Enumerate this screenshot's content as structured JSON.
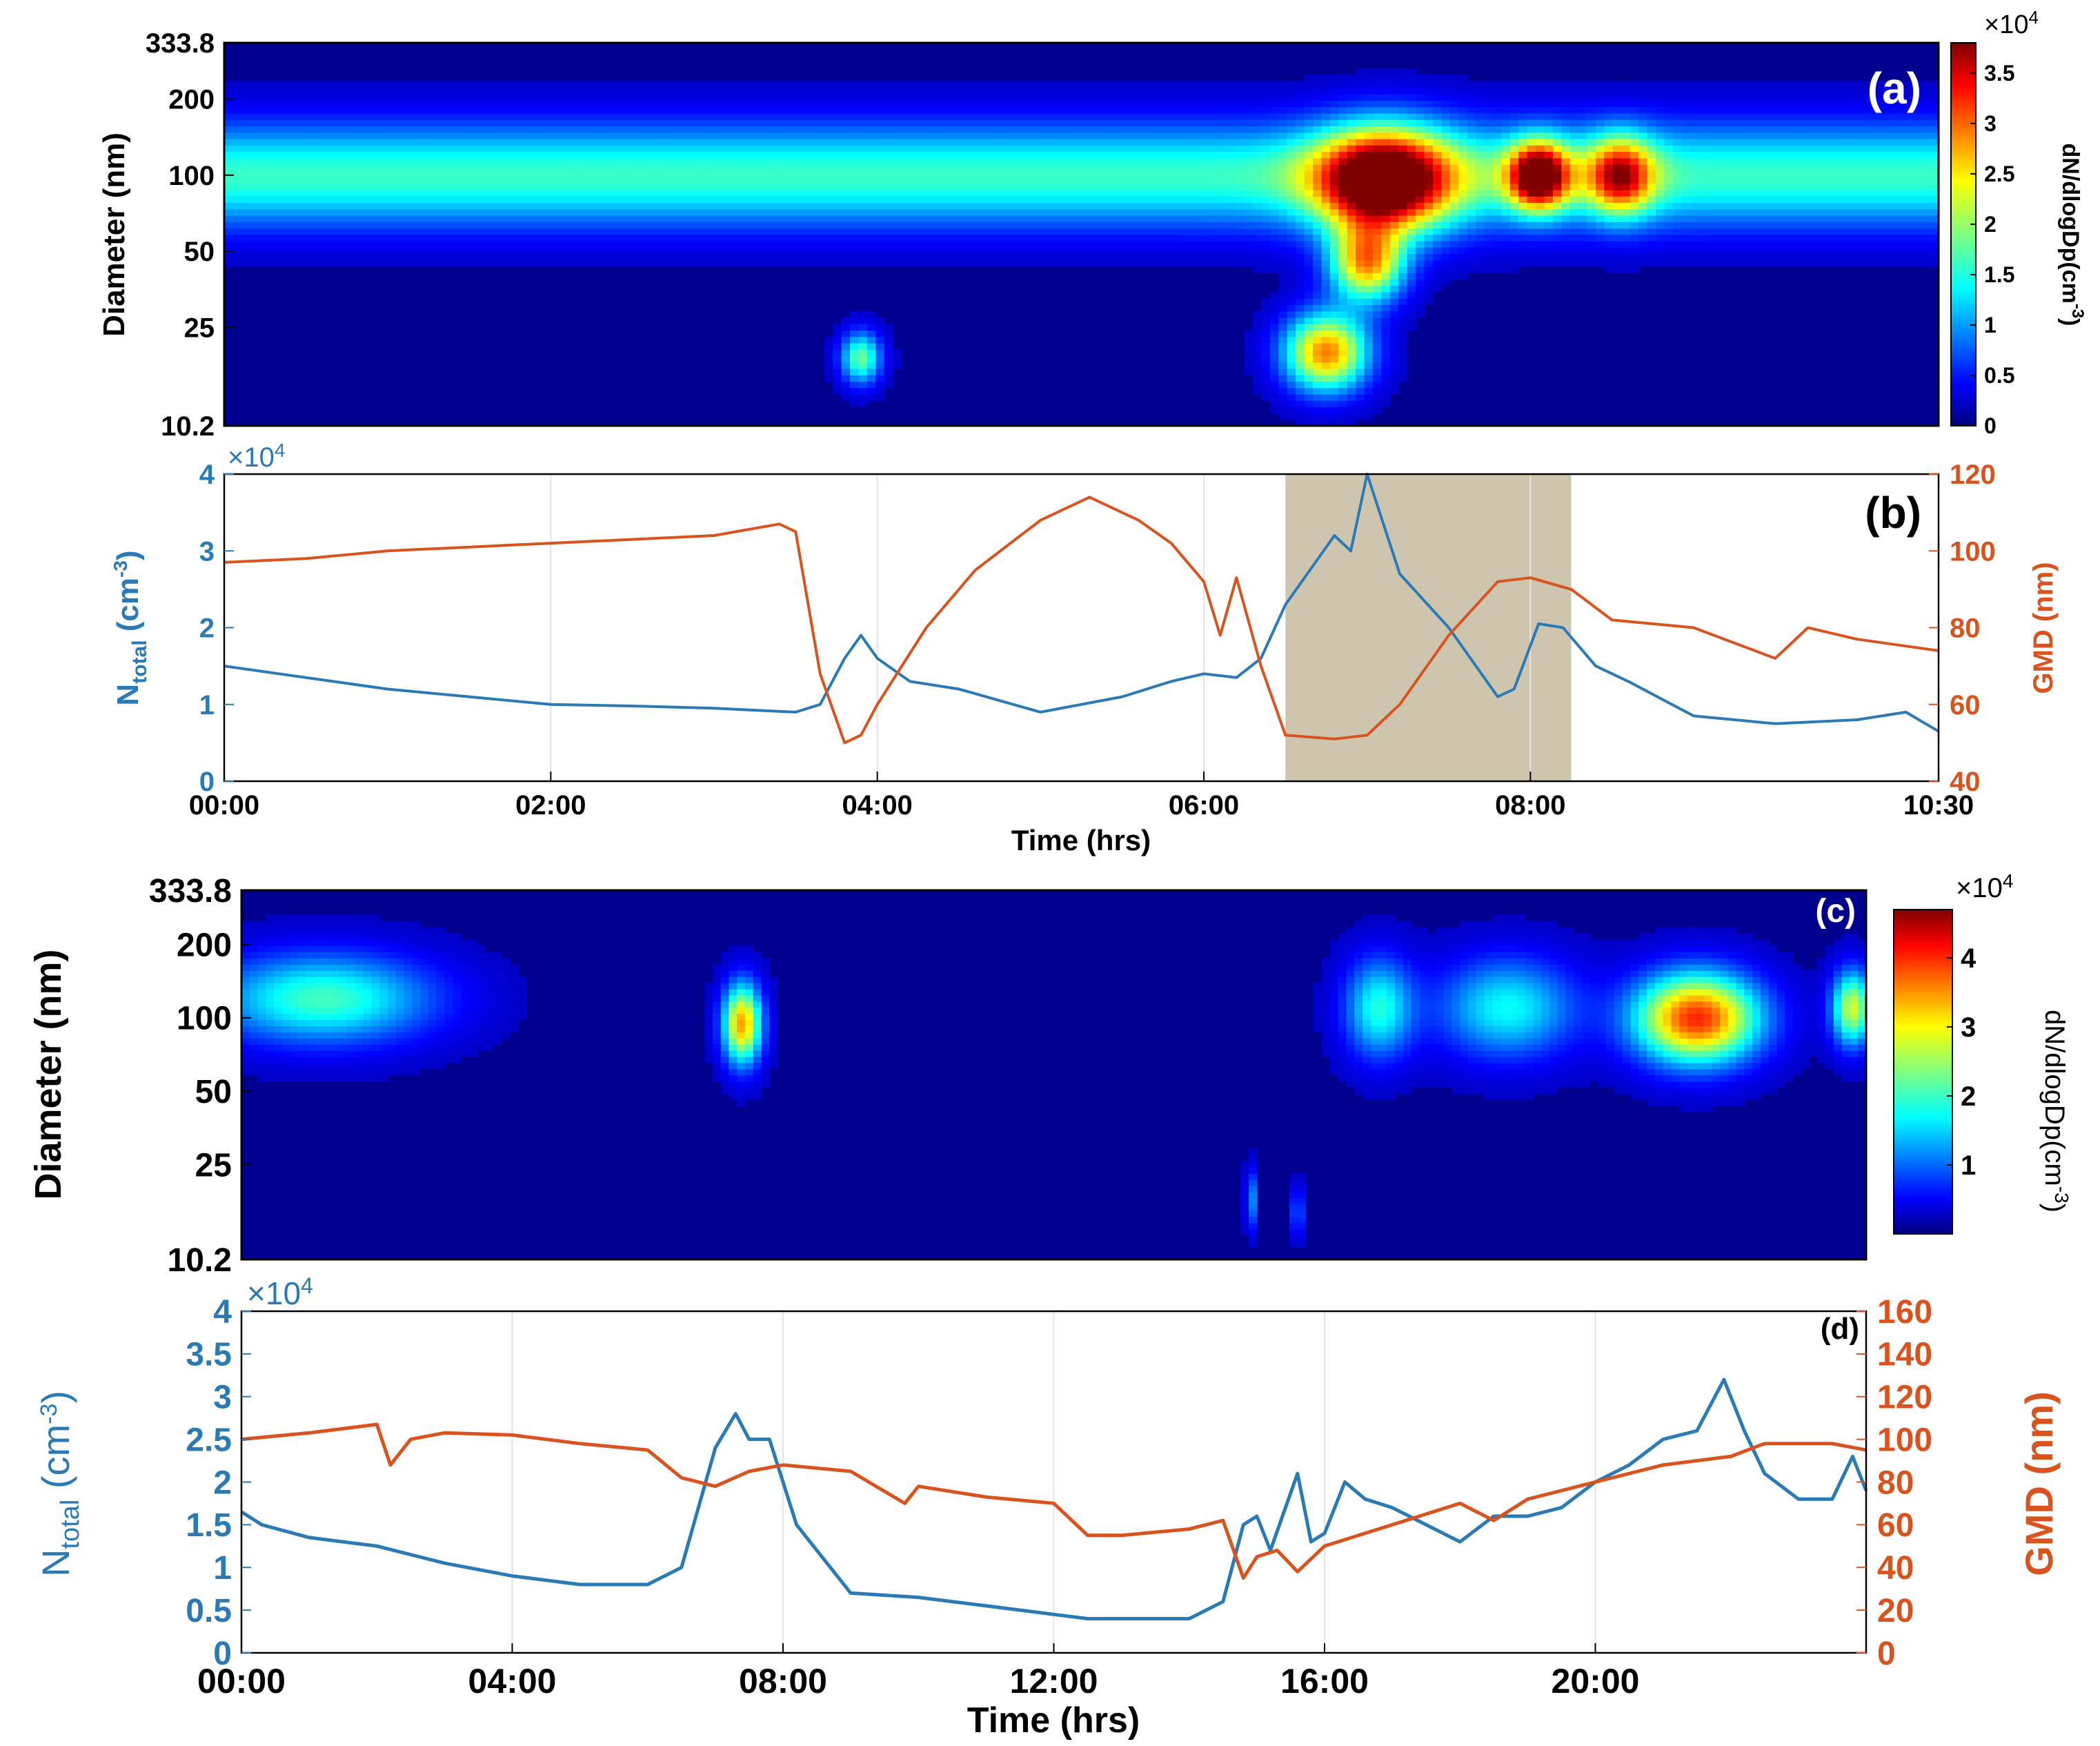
{
  "colors": {
    "ntotal": "#2a7ab5",
    "gmd": "#d9531e",
    "highlight": "#c9bfa6",
    "grid": "#e3e3e3",
    "axis": "#222222"
  },
  "chart_data": [
    {
      "id": "a",
      "type": "heatmap",
      "panel_label": "(a)",
      "ylabel": "Diameter (nm)",
      "yscale": "log",
      "ylim": [
        10.2,
        333.8
      ],
      "yticks": [
        10.2,
        25,
        50,
        100,
        200,
        333.8
      ],
      "ytick_labels": [
        "10.2",
        "25",
        "50",
        "100",
        "200",
        "333.8"
      ],
      "xlim_hours": [
        0,
        10.5
      ],
      "colorbar": {
        "label": "dN/dlogDp(cm",
        "label_sup": "-3",
        "label_close": ")",
        "multiplier": "×10",
        "multiplier_exp": "4",
        "range": [
          0,
          3.8
        ],
        "ticks": [
          0,
          0.5,
          1,
          1.5,
          2,
          2.5,
          3,
          3.5
        ],
        "tick_labels": [
          "0",
          "0.5",
          "1",
          "1.5",
          "2",
          "2.5",
          "3",
          "3.5"
        ]
      },
      "background_mode": {
        "diameter_nm": 100,
        "peak": 1.5,
        "width_log10": 0.2
      },
      "blobs": [
        {
          "time_h": 3.9,
          "diameter_nm": 19,
          "peak": 1.7,
          "width_h": 0.12,
          "width_log10": 0.1
        },
        {
          "time_h": 6.75,
          "diameter_nm": 20,
          "peak": 2.8,
          "width_h": 0.25,
          "width_log10": 0.15
        },
        {
          "time_h": 7.0,
          "diameter_nm": 45,
          "peak": 2.6,
          "width_h": 0.22,
          "width_log10": 0.15
        },
        {
          "time_h": 7.1,
          "diameter_nm": 95,
          "peak": 3.7,
          "width_h": 0.4,
          "width_log10": 0.2
        },
        {
          "time_h": 8.05,
          "diameter_nm": 100,
          "peak": 3.4,
          "width_h": 0.18,
          "width_log10": 0.13
        },
        {
          "time_h": 8.55,
          "diameter_nm": 100,
          "peak": 2.4,
          "width_h": 0.2,
          "width_log10": 0.15
        }
      ]
    },
    {
      "id": "b",
      "type": "line",
      "panel_label": "(b)",
      "xlabel": "Time (hrs)",
      "xlim_hours": [
        0,
        10.5
      ],
      "xticks_hours": [
        0,
        2,
        4,
        6,
        8,
        10.5
      ],
      "xtick_labels": [
        "00:00",
        "02:00",
        "04:00",
        "06:00",
        "08:00",
        "10:30"
      ],
      "left_axis": {
        "label_main": "N",
        "label_sub": "total",
        "label_unit": " (cm",
        "label_sup": "-3",
        "label_close": ")",
        "multiplier": "×10",
        "multiplier_exp": "4",
        "ylim": [
          0,
          4
        ],
        "ticks": [
          0,
          1,
          2,
          3,
          4
        ],
        "tick_labels": [
          "0",
          "1",
          "2",
          "3",
          "4"
        ]
      },
      "right_axis": {
        "label": "GMD (nm)",
        "ylim": [
          40,
          120
        ],
        "ticks": [
          40,
          60,
          80,
          100,
          120
        ],
        "tick_labels": [
          "40",
          "60",
          "80",
          "100",
          "120"
        ]
      },
      "highlight_hours": [
        6.5,
        8.25
      ],
      "series": [
        {
          "name": "N_total",
          "axis": "left",
          "x_hours": [
            0,
            0.5,
            1,
            1.5,
            2,
            2.5,
            3,
            3.5,
            3.65,
            3.8,
            3.9,
            4.0,
            4.2,
            4.5,
            5.0,
            5.5,
            5.8,
            6.0,
            6.2,
            6.35,
            6.5,
            6.8,
            6.9,
            7.0,
            7.2,
            7.5,
            7.8,
            7.9,
            8.05,
            8.2,
            8.4,
            8.6,
            9.0,
            9.5,
            10,
            10.3,
            10.5
          ],
          "values": [
            1.5,
            1.35,
            1.2,
            1.1,
            1.0,
            0.98,
            0.95,
            0.9,
            1.0,
            1.6,
            1.9,
            1.6,
            1.3,
            1.2,
            0.9,
            1.1,
            1.3,
            1.4,
            1.35,
            1.6,
            2.3,
            3.2,
            3.0,
            4.0,
            2.7,
            2.0,
            1.1,
            1.2,
            2.05,
            2.0,
            1.5,
            1.3,
            0.85,
            0.75,
            0.8,
            0.9,
            0.65
          ]
        },
        {
          "name": "GMD",
          "axis": "right",
          "x_hours": [
            0,
            0.5,
            1,
            1.5,
            2,
            2.5,
            3,
            3.4,
            3.5,
            3.65,
            3.8,
            3.9,
            4.0,
            4.3,
            4.6,
            5.0,
            5.3,
            5.6,
            5.8,
            6.0,
            6.1,
            6.2,
            6.35,
            6.5,
            6.8,
            7.0,
            7.2,
            7.5,
            7.8,
            8.0,
            8.25,
            8.5,
            9.0,
            9.5,
            9.7,
            10,
            10.5
          ],
          "values": [
            97,
            98,
            100,
            101,
            102,
            103,
            104,
            107,
            105,
            68,
            50,
            52,
            60,
            80,
            95,
            108,
            114,
            108,
            102,
            92,
            78,
            93,
            70,
            52,
            51,
            52,
            60,
            78,
            92,
            93,
            90,
            82,
            80,
            72,
            80,
            77,
            74
          ]
        }
      ]
    },
    {
      "id": "c",
      "type": "heatmap",
      "panel_label": "(c)",
      "ylabel": "Diameter (nm)",
      "yscale": "log",
      "ylim": [
        10.2,
        333.8
      ],
      "yticks": [
        10.2,
        25,
        50,
        100,
        200,
        333.8
      ],
      "ytick_labels": [
        "10.2",
        "25",
        "50",
        "100",
        "200",
        "333.8"
      ],
      "xlim_hours": [
        0,
        24
      ],
      "colorbar": {
        "label": "dN/dlogDp(cm",
        "label_sup": "-3",
        "label_close": ")",
        "multiplier": "×10",
        "multiplier_exp": "4",
        "range": [
          0,
          4.7
        ],
        "ticks": [
          1,
          2,
          3,
          4
        ],
        "tick_labels": [
          "1",
          "2",
          "3",
          "4"
        ]
      },
      "blobs": [
        {
          "time_h": 1.2,
          "diameter_nm": 120,
          "peak": 1.9,
          "width_h": 1.6,
          "width_log10": 0.18
        },
        {
          "time_h": 7.4,
          "diameter_nm": 95,
          "peak": 3.3,
          "width_h": 0.28,
          "width_log10": 0.16
        },
        {
          "time_h": 14.9,
          "diameter_nm": 18,
          "peak": 1.5,
          "width_h": 0.06,
          "width_log10": 0.12
        },
        {
          "time_h": 15.6,
          "diameter_nm": 16,
          "peak": 1.5,
          "width_h": 0.06,
          "width_log10": 0.1
        },
        {
          "time_h": 16.8,
          "diameter_nm": 110,
          "peak": 1.7,
          "width_h": 0.5,
          "width_log10": 0.2
        },
        {
          "time_h": 18.7,
          "diameter_nm": 110,
          "peak": 1.6,
          "width_h": 1.0,
          "width_log10": 0.2
        },
        {
          "time_h": 21.5,
          "diameter_nm": 100,
          "peak": 3.9,
          "width_h": 0.9,
          "width_log10": 0.18
        },
        {
          "time_h": 23.8,
          "diameter_nm": 110,
          "peak": 2.6,
          "width_h": 0.3,
          "width_log10": 0.15
        }
      ]
    },
    {
      "id": "d",
      "type": "line",
      "panel_label": "(d)",
      "xlabel": "Time (hrs)",
      "xlim_hours": [
        0,
        24
      ],
      "xticks_hours": [
        0,
        4,
        8,
        12,
        16,
        20
      ],
      "xtick_labels": [
        "00:00",
        "04:00",
        "08:00",
        "12:00",
        "16:00",
        "20:00"
      ],
      "left_axis": {
        "label_main": "N",
        "label_sub": "total",
        "label_unit": " (cm",
        "label_sup": "-3",
        "label_close": ")",
        "multiplier": "×10",
        "multiplier_exp": "4",
        "ylim": [
          0,
          4
        ],
        "ticks": [
          0,
          0.5,
          1,
          1.5,
          2,
          2.5,
          3,
          3.5,
          4
        ],
        "tick_labels": [
          "0",
          "0.5",
          "1",
          "1.5",
          "2",
          "2.5",
          "3",
          "3.5",
          "4"
        ]
      },
      "right_axis": {
        "label": "GMD (nm)",
        "ylim": [
          0,
          160
        ],
        "ticks": [
          0,
          20,
          40,
          60,
          80,
          100,
          120,
          140,
          160
        ],
        "tick_labels": [
          "0",
          "20",
          "40",
          "60",
          "80",
          "100",
          "120",
          "140",
          "160"
        ]
      },
      "series": [
        {
          "name": "N_total",
          "axis": "left",
          "x_hours": [
            0,
            0.3,
            1,
            2,
            3,
            4,
            5,
            6,
            6.5,
            7.0,
            7.3,
            7.5,
            7.8,
            8.2,
            9,
            10,
            11,
            12,
            12.5,
            13,
            14,
            14.5,
            14.8,
            15.0,
            15.2,
            15.6,
            15.8,
            16,
            16.3,
            16.6,
            17,
            17.5,
            18,
            18.5,
            19,
            19.5,
            20,
            20.5,
            21,
            21.5,
            21.9,
            22.2,
            22.5,
            23,
            23.5,
            23.8,
            24
          ],
          "values": [
            1.65,
            1.5,
            1.35,
            1.25,
            1.05,
            0.9,
            0.8,
            0.8,
            1.0,
            2.4,
            2.8,
            2.5,
            2.5,
            1.5,
            0.7,
            0.65,
            0.55,
            0.45,
            0.4,
            0.4,
            0.4,
            0.6,
            1.5,
            1.6,
            1.2,
            2.1,
            1.3,
            1.4,
            2.0,
            1.8,
            1.7,
            1.5,
            1.3,
            1.6,
            1.6,
            1.7,
            2.0,
            2.2,
            2.5,
            2.6,
            3.2,
            2.6,
            2.1,
            1.8,
            1.8,
            2.3,
            1.9
          ]
        },
        {
          "name": "GMD",
          "axis": "right",
          "x_hours": [
            0,
            1,
            2,
            2.2,
            2.5,
            3,
            4,
            5,
            6,
            6.5,
            7,
            7.5,
            8,
            9,
            9.8,
            10,
            11,
            12,
            12.5,
            13,
            14,
            14.5,
            14.8,
            15.0,
            15.3,
            15.6,
            16,
            17,
            18,
            18.5,
            19,
            20,
            21,
            22,
            22.5,
            23,
            23.5,
            24
          ],
          "values": [
            100,
            103,
            107,
            88,
            100,
            103,
            102,
            98,
            95,
            82,
            78,
            85,
            88,
            85,
            70,
            78,
            73,
            70,
            55,
            55,
            58,
            62,
            35,
            45,
            48,
            38,
            50,
            60,
            70,
            62,
            72,
            80,
            88,
            92,
            98,
            98,
            98,
            95
          ]
        }
      ]
    }
  ]
}
